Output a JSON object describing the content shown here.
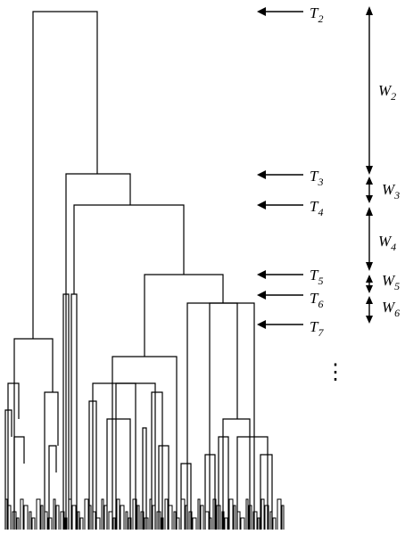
{
  "diagram": {
    "thresholds": [
      {
        "name": "T",
        "sub": "2"
      },
      {
        "name": "T",
        "sub": "3"
      },
      {
        "name": "T",
        "sub": "4"
      },
      {
        "name": "T",
        "sub": "5"
      },
      {
        "name": "T",
        "sub": "6"
      },
      {
        "name": "T",
        "sub": "7"
      }
    ],
    "windows": [
      {
        "name": "W",
        "sub": "2"
      },
      {
        "name": "W",
        "sub": "3"
      },
      {
        "name": "W",
        "sub": "4"
      },
      {
        "name": "W",
        "sub": "5"
      },
      {
        "name": "W",
        "sub": "6"
      }
    ],
    "continuation": "⋮",
    "colors": {
      "line": "#000000",
      "background": "#ffffff"
    }
  }
}
